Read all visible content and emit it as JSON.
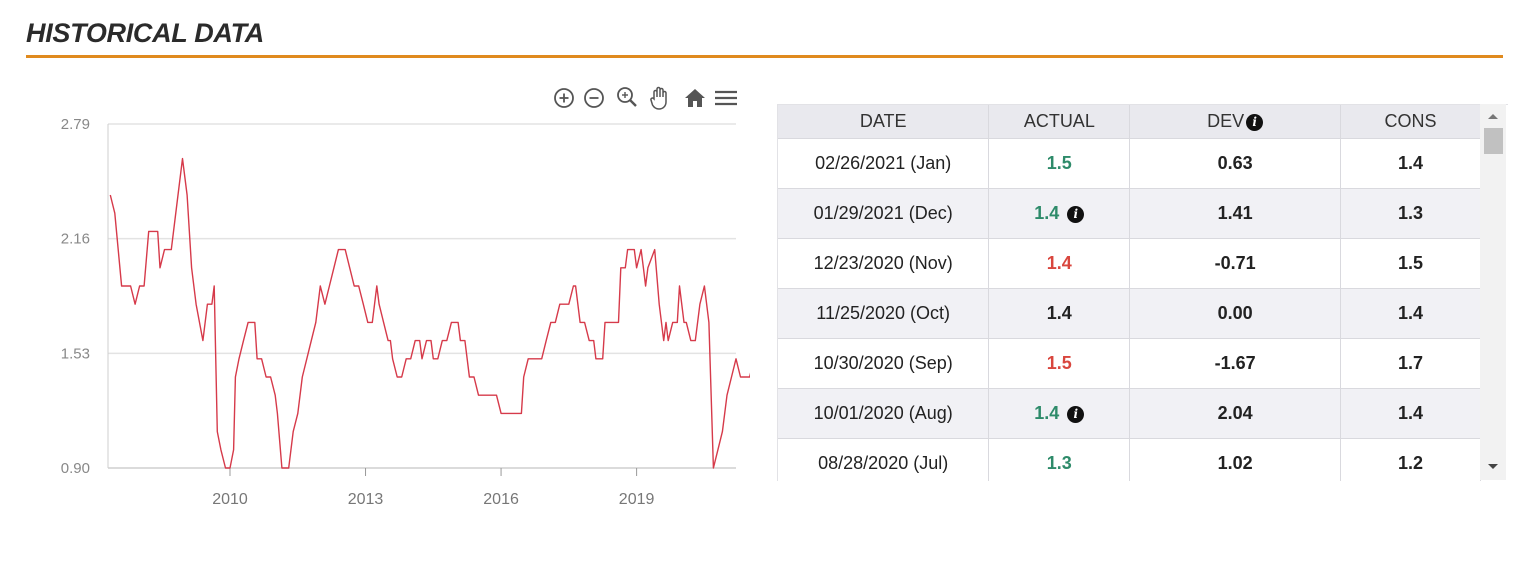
{
  "section": {
    "title": "HISTORICAL DATA"
  },
  "toolbar": {
    "icons": [
      "zoom-in-icon",
      "zoom-out-icon",
      "magnify-icon",
      "pan-hand-icon",
      "home-icon",
      "menu-icon"
    ]
  },
  "colors": {
    "accent_rule": "#e08a1e",
    "line": "#d63a4a",
    "positive": "#2e8b6a",
    "negative": "#d9463e"
  },
  "chart_data": {
    "type": "line",
    "title": "",
    "xlabel": "",
    "ylabel": "",
    "grid": true,
    "ylim": [
      0.9,
      2.79
    ],
    "yticks": [
      "2.79",
      "2.16",
      "1.53",
      "0.90"
    ],
    "ytick_values": [
      2.79,
      2.16,
      1.53,
      0.9
    ],
    "xticks": [
      "2010",
      "2013",
      "2016",
      "2019"
    ],
    "xtick_values": [
      2010,
      2013,
      2016,
      2019
    ],
    "xlim": [
      2007.3,
      2021.2
    ],
    "series": [
      {
        "values": [
          [
            2007.35,
            2.4
          ],
          [
            2007.45,
            2.3
          ],
          [
            2007.6,
            1.9
          ],
          [
            2007.8,
            1.9
          ],
          [
            2007.9,
            1.8
          ],
          [
            2008.0,
            1.9
          ],
          [
            2008.1,
            1.9
          ],
          [
            2008.2,
            2.2
          ],
          [
            2008.4,
            2.2
          ],
          [
            2008.45,
            2.0
          ],
          [
            2008.55,
            2.1
          ],
          [
            2008.7,
            2.1
          ],
          [
            2008.85,
            2.4
          ],
          [
            2008.95,
            2.6
          ],
          [
            2009.05,
            2.4
          ],
          [
            2009.15,
            2.0
          ],
          [
            2009.25,
            1.8
          ],
          [
            2009.4,
            1.6
          ],
          [
            2009.5,
            1.8
          ],
          [
            2009.6,
            1.8
          ],
          [
            2009.65,
            1.9
          ],
          [
            2009.72,
            1.1
          ],
          [
            2009.8,
            1.0
          ],
          [
            2009.9,
            0.9
          ],
          [
            2010.0,
            0.9
          ],
          [
            2010.08,
            1.0
          ],
          [
            2010.12,
            1.4
          ],
          [
            2010.2,
            1.5
          ],
          [
            2010.3,
            1.6
          ],
          [
            2010.4,
            1.7
          ],
          [
            2010.55,
            1.7
          ],
          [
            2010.6,
            1.5
          ],
          [
            2010.7,
            1.5
          ],
          [
            2010.8,
            1.4
          ],
          [
            2010.9,
            1.4
          ],
          [
            2011.0,
            1.3
          ],
          [
            2011.05,
            1.2
          ],
          [
            2011.15,
            0.9
          ],
          [
            2011.3,
            0.9
          ],
          [
            2011.4,
            1.1
          ],
          [
            2011.5,
            1.2
          ],
          [
            2011.6,
            1.4
          ],
          [
            2011.7,
            1.5
          ],
          [
            2011.8,
            1.6
          ],
          [
            2011.9,
            1.7
          ],
          [
            2012.0,
            1.9
          ],
          [
            2012.1,
            1.8
          ],
          [
            2012.2,
            1.9
          ],
          [
            2012.3,
            2.0
          ],
          [
            2012.4,
            2.1
          ],
          [
            2012.55,
            2.1
          ],
          [
            2012.65,
            2.0
          ],
          [
            2012.75,
            1.9
          ],
          [
            2012.85,
            1.9
          ],
          [
            2012.95,
            1.8
          ],
          [
            2013.05,
            1.7
          ],
          [
            2013.15,
            1.7
          ],
          [
            2013.25,
            1.9
          ],
          [
            2013.3,
            1.8
          ],
          [
            2013.4,
            1.7
          ],
          [
            2013.5,
            1.6
          ],
          [
            2013.55,
            1.6
          ],
          [
            2013.6,
            1.5
          ],
          [
            2013.7,
            1.4
          ],
          [
            2013.8,
            1.4
          ],
          [
            2013.9,
            1.5
          ],
          [
            2014.0,
            1.5
          ],
          [
            2014.1,
            1.6
          ],
          [
            2014.2,
            1.6
          ],
          [
            2014.25,
            1.5
          ],
          [
            2014.35,
            1.6
          ],
          [
            2014.45,
            1.6
          ],
          [
            2014.5,
            1.5
          ],
          [
            2014.6,
            1.5
          ],
          [
            2014.7,
            1.6
          ],
          [
            2014.8,
            1.6
          ],
          [
            2014.9,
            1.7
          ],
          [
            2015.05,
            1.7
          ],
          [
            2015.1,
            1.6
          ],
          [
            2015.2,
            1.6
          ],
          [
            2015.3,
            1.4
          ],
          [
            2015.4,
            1.4
          ],
          [
            2015.5,
            1.3
          ],
          [
            2015.9,
            1.3
          ],
          [
            2016.0,
            1.2
          ],
          [
            2016.45,
            1.2
          ],
          [
            2016.5,
            1.4
          ],
          [
            2016.6,
            1.5
          ],
          [
            2016.9,
            1.5
          ],
          [
            2017.0,
            1.6
          ],
          [
            2017.1,
            1.7
          ],
          [
            2017.2,
            1.7
          ],
          [
            2017.3,
            1.8
          ],
          [
            2017.5,
            1.8
          ],
          [
            2017.6,
            1.9
          ],
          [
            2017.65,
            1.9
          ],
          [
            2017.75,
            1.7
          ],
          [
            2017.85,
            1.7
          ],
          [
            2017.95,
            1.6
          ],
          [
            2018.05,
            1.6
          ],
          [
            2018.1,
            1.5
          ],
          [
            2018.25,
            1.5
          ],
          [
            2018.3,
            1.7
          ],
          [
            2018.6,
            1.7
          ],
          [
            2018.65,
            2.0
          ],
          [
            2018.75,
            2.0
          ],
          [
            2018.8,
            2.1
          ],
          [
            2018.95,
            2.1
          ],
          [
            2019.0,
            2.0
          ],
          [
            2019.1,
            2.1
          ],
          [
            2019.15,
            2.0
          ],
          [
            2019.2,
            1.9
          ],
          [
            2019.25,
            2.0
          ],
          [
            2019.4,
            2.1
          ],
          [
            2019.5,
            1.8
          ],
          [
            2019.6,
            1.6
          ],
          [
            2019.65,
            1.7
          ],
          [
            2019.7,
            1.6
          ],
          [
            2019.8,
            1.7
          ],
          [
            2019.9,
            1.7
          ],
          [
            2019.95,
            1.9
          ],
          [
            2020.05,
            1.7
          ],
          [
            2020.1,
            1.7
          ],
          [
            2020.2,
            1.6
          ],
          [
            2020.3,
            1.6
          ],
          [
            2020.4,
            1.8
          ],
          [
            2020.5,
            1.9
          ],
          [
            2020.6,
            1.7
          ],
          [
            2020.7,
            0.9
          ],
          [
            2020.8,
            1.0
          ],
          [
            2020.9,
            1.1
          ],
          [
            2021.0,
            1.3
          ],
          [
            2021.1,
            1.4
          ],
          [
            2021.2,
            1.5
          ],
          [
            2021.3,
            1.4
          ],
          [
            2021.5,
            1.4
          ],
          [
            2021.6,
            1.5
          ]
        ]
      }
    ]
  },
  "table": {
    "headers": {
      "date": "DATE",
      "actual": "ACTUAL",
      "dev": "DEV",
      "cons": "CONS"
    },
    "rows": [
      {
        "date": "02/26/2021 (Jan)",
        "actual": "1.5",
        "actual_color": "green",
        "actual_info": false,
        "dev": "0.63",
        "cons": "1.4"
      },
      {
        "date": "01/29/2021 (Dec)",
        "actual": "1.4",
        "actual_color": "green",
        "actual_info": true,
        "dev": "1.41",
        "cons": "1.3"
      },
      {
        "date": "12/23/2020 (Nov)",
        "actual": "1.4",
        "actual_color": "red",
        "actual_info": false,
        "dev": "-0.71",
        "cons": "1.5"
      },
      {
        "date": "11/25/2020 (Oct)",
        "actual": "1.4",
        "actual_color": "black",
        "actual_info": false,
        "dev": "0.00",
        "cons": "1.4"
      },
      {
        "date": "10/30/2020 (Sep)",
        "actual": "1.5",
        "actual_color": "red",
        "actual_info": false,
        "dev": "-1.67",
        "cons": "1.7"
      },
      {
        "date": "10/01/2020 (Aug)",
        "actual": "1.4",
        "actual_color": "green",
        "actual_info": true,
        "dev": "2.04",
        "cons": "1.4"
      },
      {
        "date": "08/28/2020 (Jul)",
        "actual": "1.3",
        "actual_color": "green",
        "actual_info": false,
        "dev": "1.02",
        "cons": "1.2"
      }
    ]
  }
}
